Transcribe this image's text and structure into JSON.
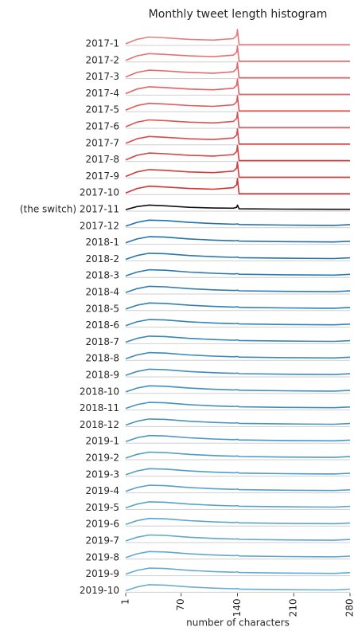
{
  "chart_data": {
    "type": "ridgeline",
    "title": "Monthly tweet length histogram",
    "xlabel": "number of characters",
    "xlim": [
      1,
      280
    ],
    "xticks": [
      1,
      70,
      140,
      210,
      280
    ],
    "ylim": [
      0,
      1
    ],
    "x": [
      1,
      15,
      30,
      50,
      80,
      110,
      135,
      139,
      140,
      142,
      200,
      260,
      280
    ],
    "series": [
      {
        "name": "2017-1",
        "color": "#e77b7c",
        "values": [
          0.05,
          0.35,
          0.5,
          0.45,
          0.35,
          0.3,
          0.4,
          0.6,
          1.0,
          0,
          0,
          0,
          0
        ]
      },
      {
        "name": "2017-2",
        "color": "#e57273",
        "values": [
          0.05,
          0.35,
          0.5,
          0.45,
          0.35,
          0.3,
          0.4,
          0.6,
          1.0,
          0,
          0,
          0,
          0
        ]
      },
      {
        "name": "2017-3",
        "color": "#e36a6b",
        "values": [
          0.05,
          0.35,
          0.5,
          0.45,
          0.35,
          0.3,
          0.4,
          0.6,
          1.0,
          0,
          0,
          0,
          0
        ]
      },
      {
        "name": "2017-4",
        "color": "#e16263",
        "values": [
          0.05,
          0.35,
          0.5,
          0.45,
          0.35,
          0.3,
          0.4,
          0.6,
          1.0,
          0,
          0,
          0,
          0
        ]
      },
      {
        "name": "2017-5",
        "color": "#df5a5b",
        "values": [
          0.05,
          0.35,
          0.5,
          0.45,
          0.35,
          0.3,
          0.4,
          0.6,
          1.0,
          0,
          0,
          0,
          0
        ]
      },
      {
        "name": "2017-6",
        "color": "#dd5253",
        "values": [
          0.05,
          0.35,
          0.5,
          0.45,
          0.35,
          0.3,
          0.4,
          0.6,
          1.0,
          0,
          0,
          0,
          0
        ]
      },
      {
        "name": "2017-7",
        "color": "#db4a4b",
        "values": [
          0.05,
          0.35,
          0.5,
          0.45,
          0.35,
          0.3,
          0.4,
          0.6,
          1.0,
          0,
          0,
          0,
          0
        ]
      },
      {
        "name": "2017-8",
        "color": "#d94243",
        "values": [
          0.05,
          0.35,
          0.5,
          0.45,
          0.35,
          0.3,
          0.4,
          0.6,
          1.0,
          0,
          0,
          0,
          0
        ]
      },
      {
        "name": "2017-9",
        "color": "#d73a3b",
        "values": [
          0.05,
          0.35,
          0.5,
          0.45,
          0.35,
          0.3,
          0.4,
          0.6,
          1.0,
          0,
          0,
          0,
          0
        ]
      },
      {
        "name": "2017-10",
        "color": "#d53233",
        "values": [
          0.05,
          0.35,
          0.5,
          0.45,
          0.35,
          0.3,
          0.4,
          0.6,
          1.0,
          0,
          0,
          0,
          0
        ]
      },
      {
        "name": "(the switch) 2017-11",
        "color": "#111111",
        "values": [
          0.05,
          0.25,
          0.35,
          0.3,
          0.2,
          0.15,
          0.14,
          0.2,
          0.35,
          0.1,
          0.08,
          0.07,
          0.07
        ]
      },
      {
        "name": "2017-12",
        "color": "#2470a8",
        "values": [
          0.05,
          0.3,
          0.45,
          0.42,
          0.3,
          0.22,
          0.18,
          0.19,
          0.2,
          0.16,
          0.12,
          0.1,
          0.15
        ]
      },
      {
        "name": "2018-1",
        "color": "#2673aa",
        "values": [
          0.05,
          0.3,
          0.45,
          0.42,
          0.3,
          0.22,
          0.18,
          0.19,
          0.2,
          0.16,
          0.12,
          0.1,
          0.15
        ]
      },
      {
        "name": "2018-2",
        "color": "#2976ad",
        "values": [
          0.05,
          0.3,
          0.45,
          0.42,
          0.3,
          0.22,
          0.18,
          0.19,
          0.2,
          0.16,
          0.12,
          0.1,
          0.15
        ]
      },
      {
        "name": "2018-3",
        "color": "#2c79af",
        "values": [
          0.05,
          0.3,
          0.45,
          0.42,
          0.3,
          0.22,
          0.18,
          0.19,
          0.2,
          0.16,
          0.12,
          0.1,
          0.15
        ]
      },
      {
        "name": "2018-4",
        "color": "#2f7cb1",
        "values": [
          0.05,
          0.3,
          0.45,
          0.42,
          0.3,
          0.22,
          0.18,
          0.19,
          0.2,
          0.16,
          0.12,
          0.1,
          0.15
        ]
      },
      {
        "name": "2018-5",
        "color": "#327fb3",
        "values": [
          0.05,
          0.3,
          0.45,
          0.42,
          0.3,
          0.22,
          0.18,
          0.19,
          0.2,
          0.16,
          0.12,
          0.1,
          0.15
        ]
      },
      {
        "name": "2018-6",
        "color": "#3582b5",
        "values": [
          0.05,
          0.3,
          0.45,
          0.42,
          0.3,
          0.22,
          0.18,
          0.19,
          0.2,
          0.16,
          0.12,
          0.1,
          0.15
        ]
      },
      {
        "name": "2018-7",
        "color": "#3885b7",
        "values": [
          0.05,
          0.3,
          0.45,
          0.42,
          0.3,
          0.22,
          0.18,
          0.19,
          0.2,
          0.16,
          0.12,
          0.1,
          0.15
        ]
      },
      {
        "name": "2018-8",
        "color": "#3b88b9",
        "values": [
          0.05,
          0.3,
          0.45,
          0.42,
          0.3,
          0.22,
          0.18,
          0.19,
          0.2,
          0.16,
          0.12,
          0.1,
          0.15
        ]
      },
      {
        "name": "2018-9",
        "color": "#3e8bbb",
        "values": [
          0.05,
          0.3,
          0.45,
          0.42,
          0.3,
          0.22,
          0.18,
          0.19,
          0.2,
          0.16,
          0.12,
          0.1,
          0.15
        ]
      },
      {
        "name": "2018-10",
        "color": "#418ebd",
        "values": [
          0.05,
          0.3,
          0.45,
          0.42,
          0.3,
          0.22,
          0.18,
          0.19,
          0.2,
          0.16,
          0.12,
          0.1,
          0.15
        ]
      },
      {
        "name": "2018-11",
        "color": "#4491bf",
        "values": [
          0.05,
          0.3,
          0.45,
          0.42,
          0.3,
          0.22,
          0.18,
          0.19,
          0.2,
          0.16,
          0.12,
          0.1,
          0.15
        ]
      },
      {
        "name": "2018-12",
        "color": "#4794c1",
        "values": [
          0.05,
          0.3,
          0.45,
          0.42,
          0.3,
          0.22,
          0.18,
          0.19,
          0.2,
          0.16,
          0.12,
          0.1,
          0.15
        ]
      },
      {
        "name": "2019-1",
        "color": "#4a97c3",
        "values": [
          0.05,
          0.3,
          0.45,
          0.42,
          0.3,
          0.22,
          0.18,
          0.19,
          0.2,
          0.16,
          0.12,
          0.1,
          0.15
        ]
      },
      {
        "name": "2019-2",
        "color": "#4d9ac5",
        "values": [
          0.05,
          0.3,
          0.45,
          0.42,
          0.3,
          0.22,
          0.18,
          0.19,
          0.2,
          0.16,
          0.12,
          0.1,
          0.15
        ]
      },
      {
        "name": "2019-3",
        "color": "#509dc7",
        "values": [
          0.05,
          0.3,
          0.45,
          0.42,
          0.3,
          0.22,
          0.18,
          0.19,
          0.2,
          0.16,
          0.12,
          0.1,
          0.15
        ]
      },
      {
        "name": "2019-4",
        "color": "#53a0c9",
        "values": [
          0.05,
          0.3,
          0.45,
          0.42,
          0.3,
          0.22,
          0.18,
          0.19,
          0.2,
          0.16,
          0.12,
          0.1,
          0.15
        ]
      },
      {
        "name": "2019-5",
        "color": "#56a2cb",
        "values": [
          0.05,
          0.3,
          0.45,
          0.42,
          0.3,
          0.22,
          0.18,
          0.19,
          0.2,
          0.16,
          0.12,
          0.1,
          0.15
        ]
      },
      {
        "name": "2019-6",
        "color": "#59a4cd",
        "values": [
          0.05,
          0.3,
          0.45,
          0.42,
          0.3,
          0.22,
          0.18,
          0.19,
          0.2,
          0.16,
          0.12,
          0.1,
          0.15
        ]
      },
      {
        "name": "2019-7",
        "color": "#5ca6cf",
        "values": [
          0.05,
          0.3,
          0.45,
          0.42,
          0.3,
          0.22,
          0.18,
          0.19,
          0.2,
          0.16,
          0.12,
          0.1,
          0.15
        ]
      },
      {
        "name": "2019-8",
        "color": "#60a8d1",
        "values": [
          0.05,
          0.3,
          0.45,
          0.42,
          0.3,
          0.22,
          0.18,
          0.19,
          0.2,
          0.16,
          0.12,
          0.1,
          0.15
        ]
      },
      {
        "name": "2019-9",
        "color": "#64aad3",
        "values": [
          0.05,
          0.3,
          0.45,
          0.42,
          0.3,
          0.22,
          0.18,
          0.19,
          0.2,
          0.16,
          0.12,
          0.1,
          0.15
        ]
      },
      {
        "name": "2019-10",
        "color": "#68acd5",
        "values": [
          0.05,
          0.3,
          0.45,
          0.42,
          0.3,
          0.22,
          0.18,
          0.19,
          0.2,
          0.16,
          0.12,
          0.1,
          0.15
        ]
      }
    ]
  }
}
